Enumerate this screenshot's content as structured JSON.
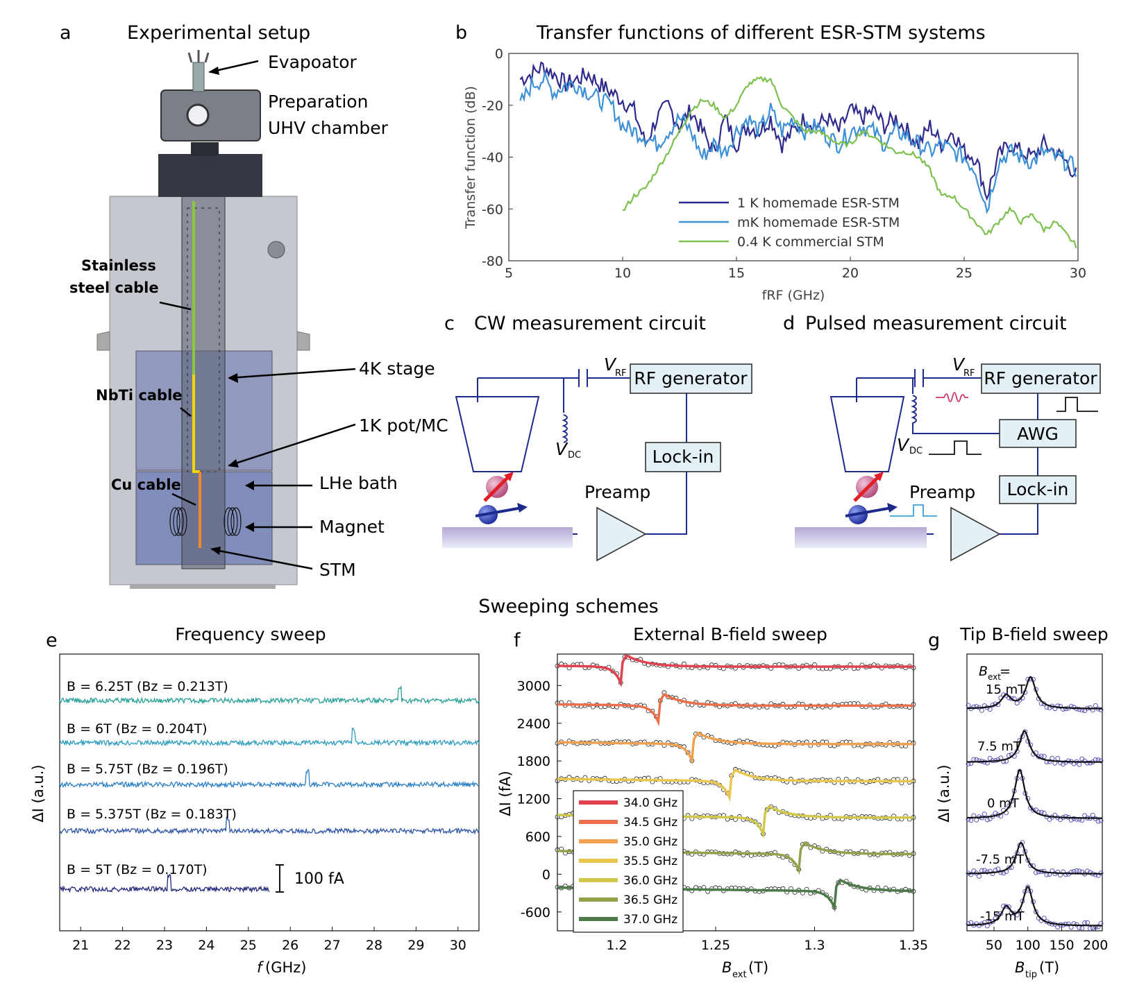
{
  "panels": {
    "a": {
      "letter": "a",
      "title": "Experimental setup",
      "labels": {
        "evaporator": "Evapoator",
        "prep1": "Preparation",
        "prep2": "UHV chamber",
        "stage4k": "4K stage",
        "pot": "1K pot/MC",
        "lhe": "LHe bath",
        "magnet": "Magnet",
        "stm": "STM",
        "ss1": "Stainless",
        "ss2": "steel cable",
        "nbti": "NbTi cable",
        "cu": "Cu cable"
      },
      "colors": {
        "ss": "#8cc63f",
        "nbti": "#f2d600",
        "cu": "#f08a2c"
      }
    },
    "b": {
      "letter": "b",
      "title": "Transfer functions of different ESR-STM systems"
    },
    "c": {
      "letter": "c",
      "title": "CW measurement circuit",
      "vrf": "V",
      "vrf_sub": "RF",
      "vdc": "V",
      "vdc_sub": "DC",
      "rf": "RF generator",
      "lockin": "Lock-in",
      "preamp": "Preamp"
    },
    "d": {
      "letter": "d",
      "title": "Pulsed measurement circuit",
      "vrf": "V",
      "vrf_sub": "RF",
      "vdc": "V",
      "vdc_sub": "DC",
      "rf": "RF generator",
      "awg": "AWG",
      "lockin": "Lock-in",
      "preamp": "Preamp"
    },
    "sweep_title": "Sweeping schemes",
    "e": {
      "letter": "e",
      "title": "Frequency sweep",
      "ylabel": "ΔI (a.u.)",
      "xlabel_f": "f",
      "xlabel_unit": " (GHz)",
      "scalebar": "100 fA",
      "traces": [
        {
          "b": "B = 6.25T (Bz = 0.213T)",
          "color": "#2aa198"
        },
        {
          "b": "B = 6T (Bz = 0.204T)",
          "color": "#2a9cbf"
        },
        {
          "b": "B = 5.75T (Bz = 0.196T)",
          "color": "#2b7fc4"
        },
        {
          "b": "B = 5.375T (Bz = 0.183T)",
          "color": "#2f55a8"
        },
        {
          "b": "B = 5T (Bz = 0.170T)",
          "color": "#22287a"
        }
      ]
    },
    "f": {
      "letter": "f",
      "title": "External B-field sweep",
      "ylabel": "ΔI (fA)",
      "xlabel": "B",
      "xlabel_sub": "ext",
      "xlabel_unit": " (T)",
      "legend": [
        {
          "label": "34.0 GHz",
          "color": "#e0424f"
        },
        {
          "label": "34.5 GHz",
          "color": "#ec6e4a"
        },
        {
          "label": "35.0 GHz",
          "color": "#f0a04e"
        },
        {
          "label": "35.5 GHz",
          "color": "#e9c74e"
        },
        {
          "label": "36.0 GHz",
          "color": "#cfc84a"
        },
        {
          "label": "36.5 GHz",
          "color": "#93a24a"
        },
        {
          "label": "37.0 GHz",
          "color": "#4e7a4a"
        }
      ]
    },
    "g": {
      "letter": "g",
      "title": "Tip B-field sweep",
      "ylabel": "ΔI (a.u.)",
      "xlabel": "B",
      "xlabel_sub": "tip",
      "xlabel_unit": " (T)",
      "bext_line1": "B",
      "bext_sub": "ext",
      "bext_eq": " =",
      "curves": [
        "15 mT",
        "7.5 mT",
        "0 mT",
        "-7.5 mT",
        "-15 mT"
      ]
    }
  },
  "chart_data": [
    {
      "type": "line",
      "title": "Transfer functions of different ESR-STM systems",
      "xlabel": "fRF (GHz)",
      "ylabel": "Transfer function (dB)",
      "xlim": [
        5,
        30
      ],
      "ylim": [
        -80,
        0
      ],
      "xticks": [
        5,
        10,
        15,
        20,
        25,
        30
      ],
      "yticks": [
        0,
        -20,
        -40,
        -60,
        -80
      ],
      "xtick_labels": [
        "5",
        "10",
        "15",
        "20",
        "25",
        "30"
      ],
      "ytick_labels": [
        "0",
        "-20",
        "-40",
        "-60",
        "-80"
      ],
      "series": [
        {
          "name": "1 K homemade ESR-STM",
          "color": "#2e2a8c",
          "x": [
            5.5,
            6,
            6.5,
            7,
            7.5,
            8,
            8.5,
            9,
            9.5,
            10,
            10.5,
            11,
            11.5,
            12,
            12.5,
            13,
            13.5,
            14,
            14.5,
            15,
            15.5,
            16,
            16.5,
            17,
            17.5,
            18,
            18.5,
            19,
            19.5,
            20,
            20.5,
            21,
            21.5,
            22,
            22.5,
            23,
            23.5,
            24,
            24.5,
            25,
            25.5,
            26,
            26.5,
            27,
            27.5,
            28,
            28.5,
            29,
            29.5,
            30
          ],
          "y": [
            -10,
            -8,
            -5,
            -8,
            -12,
            -10,
            -8,
            -12,
            -15,
            -18,
            -22,
            -35,
            -25,
            -20,
            -28,
            -22,
            -30,
            -38,
            -25,
            -35,
            -28,
            -30,
            -25,
            -35,
            -30,
            -25,
            -28,
            -25,
            -30,
            -22,
            -25,
            -22,
            -28,
            -25,
            -30,
            -35,
            -28,
            -35,
            -30,
            -38,
            -40,
            -55,
            -40,
            -35,
            -38,
            -40,
            -35,
            -38,
            -42,
            -48
          ]
        },
        {
          "name": "mK homemade ESR-STM",
          "color": "#3d8fd6",
          "x": [
            5.5,
            6,
            6.5,
            7,
            7.5,
            8,
            8.5,
            9,
            9.5,
            10,
            10.5,
            11,
            11.5,
            12,
            12.5,
            13,
            13.5,
            14,
            14.5,
            15,
            15.5,
            16,
            16.5,
            17,
            17.5,
            18,
            18.5,
            19,
            19.5,
            20,
            20.5,
            21,
            21.5,
            22,
            22.5,
            23,
            23.5,
            24,
            24.5,
            25,
            25.5,
            26,
            26.5,
            27,
            27.5,
            28,
            28.5,
            29,
            29.5,
            30
          ],
          "y": [
            -20,
            -12,
            -10,
            -15,
            -12,
            -12,
            -15,
            -18,
            -20,
            -28,
            -30,
            -32,
            -35,
            -30,
            -25,
            -30,
            -40,
            -35,
            -38,
            -30,
            -25,
            -30,
            -22,
            -30,
            -25,
            -30,
            -28,
            -32,
            -35,
            -30,
            -28,
            -30,
            -35,
            -30,
            -32,
            -35,
            -38,
            -35,
            -38,
            -40,
            -45,
            -60,
            -42,
            -38,
            -40,
            -42,
            -38,
            -40,
            -42,
            -45
          ]
        },
        {
          "name": "0.4 K commercial STM",
          "color": "#7cc04e",
          "x": [
            10,
            10.5,
            11,
            11.5,
            12,
            12.5,
            13,
            13.5,
            14,
            14.5,
            15,
            15.5,
            16,
            16.5,
            17,
            17.5,
            18,
            18.5,
            19,
            19.5,
            20,
            20.5,
            21,
            21.5,
            22,
            22.5,
            23,
            23.5,
            24,
            24.5,
            25,
            25.5,
            26,
            26.5,
            27,
            27.5,
            28,
            28.5,
            29,
            29.5,
            30
          ],
          "y": [
            -61,
            -55,
            -52,
            -45,
            -38,
            -30,
            -22,
            -18,
            -20,
            -25,
            -20,
            -12,
            -10,
            -10,
            -20,
            -25,
            -30,
            -30,
            -32,
            -35,
            -35,
            -30,
            -32,
            -35,
            -38,
            -38,
            -40,
            -45,
            -55,
            -55,
            -60,
            -65,
            -70,
            -65,
            -60,
            -65,
            -62,
            -68,
            -65,
            -70,
            -75
          ]
        }
      ]
    },
    {
      "type": "line",
      "title": "Frequency sweep",
      "xlabel": "f (GHz)",
      "ylabel": "ΔI (a.u.)",
      "xlim": [
        20.5,
        30.5
      ],
      "xticks": [
        21,
        22,
        23,
        24,
        25,
        26,
        27,
        28,
        29,
        30
      ],
      "xtick_labels": [
        "21",
        "22",
        "23",
        "24",
        "25",
        "26",
        "27",
        "28",
        "29",
        "30"
      ],
      "peaks_GHz": [
        28.6,
        27.5,
        26.4,
        24.5,
        23.1
      ]
    },
    {
      "type": "line",
      "title": "External B-field sweep",
      "xlabel": "Bext (T)",
      "ylabel": "ΔI (fA)",
      "xlim": [
        1.17,
        1.35
      ],
      "ylim": [
        -900,
        3500
      ],
      "xticks": [
        1.2,
        1.25,
        1.3,
        1.35
      ],
      "xtick_labels": [
        "1.2",
        "1.25",
        "1.3",
        "1.35"
      ],
      "yticks": [
        3000,
        2400,
        1800,
        1200,
        600,
        0,
        -600
      ],
      "ytick_labels": [
        "3000",
        "2400",
        "1800",
        "1200",
        "600",
        "0",
        "-600"
      ],
      "resonances_T": [
        1.202,
        1.221,
        1.238,
        1.257,
        1.274,
        1.292,
        1.31
      ],
      "offsets_fA": [
        3300,
        2680,
        2070,
        1480,
        900,
        320,
        -270
      ]
    },
    {
      "type": "line",
      "title": "Tip B-field sweep",
      "xlabel": "Btip (T)",
      "ylabel": "ΔI (a.u.)",
      "xlim": [
        10,
        210
      ],
      "xticks": [
        50,
        100,
        150,
        200
      ],
      "xtick_labels": [
        "50",
        "100",
        "150",
        "200"
      ]
    }
  ]
}
